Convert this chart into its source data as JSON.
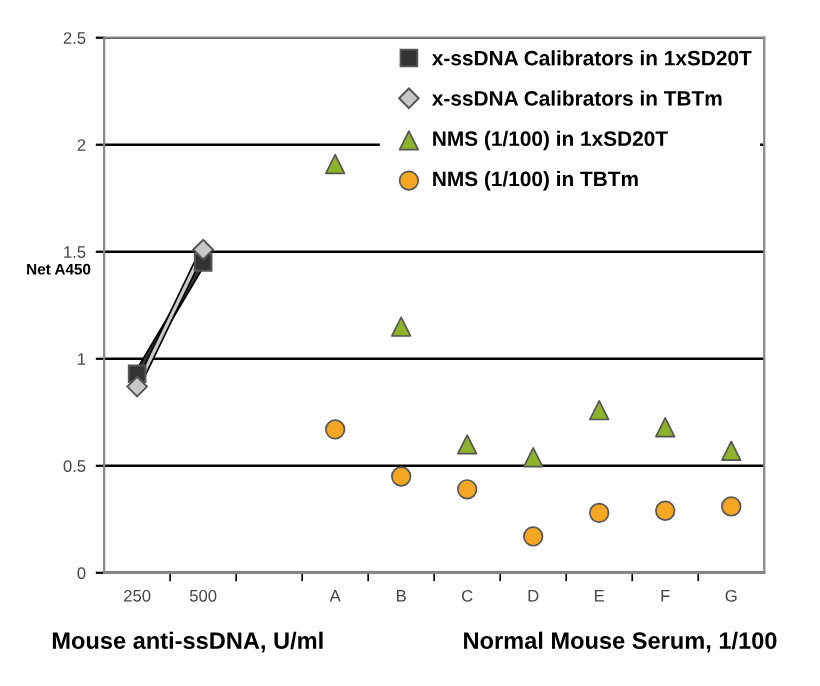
{
  "chart_data": {
    "type": "scatter",
    "ylabel": "Net A450",
    "xlabel": "Mouse anti-ssDNA, U/ml",
    "annotations": [
      "Normal Mouse Serum, 1/100"
    ],
    "categories": [
      "250",
      "500",
      null,
      "A",
      "B",
      "C",
      "D",
      "E",
      "F",
      "G"
    ],
    "series": [
      {
        "name": "x-ssDNA Calibrators in 1xSD20T",
        "color": "#333333",
        "type": "line",
        "marker": "square",
        "values": [
          0.93,
          1.45,
          null,
          null,
          null,
          null,
          null,
          null,
          null,
          null
        ]
      },
      {
        "name": "x-ssDNA Calibrators in TBTm",
        "color": "#c8c8c8",
        "type": "line",
        "marker": "diamond",
        "values": [
          0.87,
          1.51,
          null,
          null,
          null,
          null,
          null,
          null,
          null,
          null
        ]
      },
      {
        "name": "NMS (1/100) in 1xSD20T",
        "color": "#8db32b",
        "marker": "triangle",
        "values": [
          null,
          null,
          null,
          1.91,
          1.15,
          0.6,
          0.54,
          0.76,
          0.68,
          0.57
        ]
      },
      {
        "name": "NMS (1/100) in TBTm",
        "color": "#f5a623",
        "marker": "circle",
        "values": [
          null,
          null,
          null,
          0.67,
          0.45,
          0.39,
          0.17,
          0.28,
          0.29,
          0.31
        ]
      }
    ],
    "ylim": [
      0,
      2.5
    ],
    "yticks": [
      0,
      0.5,
      1,
      1.5,
      2,
      2.5
    ],
    "grid": "y",
    "legend": "top right"
  }
}
